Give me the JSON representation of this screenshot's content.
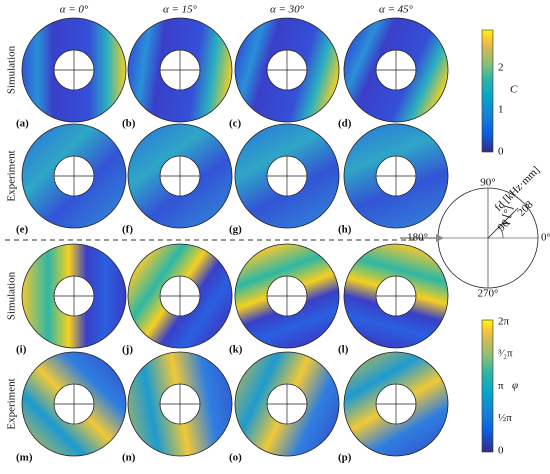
{
  "columns": [
    "α = 0°",
    "α = 15°",
    "α = 30°",
    "α = 45°"
  ],
  "row_labels": [
    "Simulation",
    "Experiment",
    "Simulation",
    "Experiment"
  ],
  "panel_labels": [
    "(a)",
    "(b)",
    "(c)",
    "(d)",
    "(e)",
    "(f)",
    "(g)",
    "(h)",
    "(i)",
    "(j)",
    "(k)",
    "(l)",
    "(m)",
    "(n)",
    "(o)",
    "(p)"
  ],
  "colorbar_amplitude": {
    "label": "C",
    "ticks": [
      "0",
      "1",
      "2"
    ]
  },
  "colorbar_phase": {
    "label": "φ",
    "ticks": [
      "0",
      "½π",
      "π",
      "³⁄₂π",
      "2π"
    ]
  },
  "polar_legend": {
    "angles": [
      "90°",
      "0°",
      "270°",
      "180°"
    ],
    "radial_label": "fd [kHz·mm]",
    "radial_ticks": [
      "96",
      "208"
    ],
    "angle_label": "γ [°]"
  }
}
